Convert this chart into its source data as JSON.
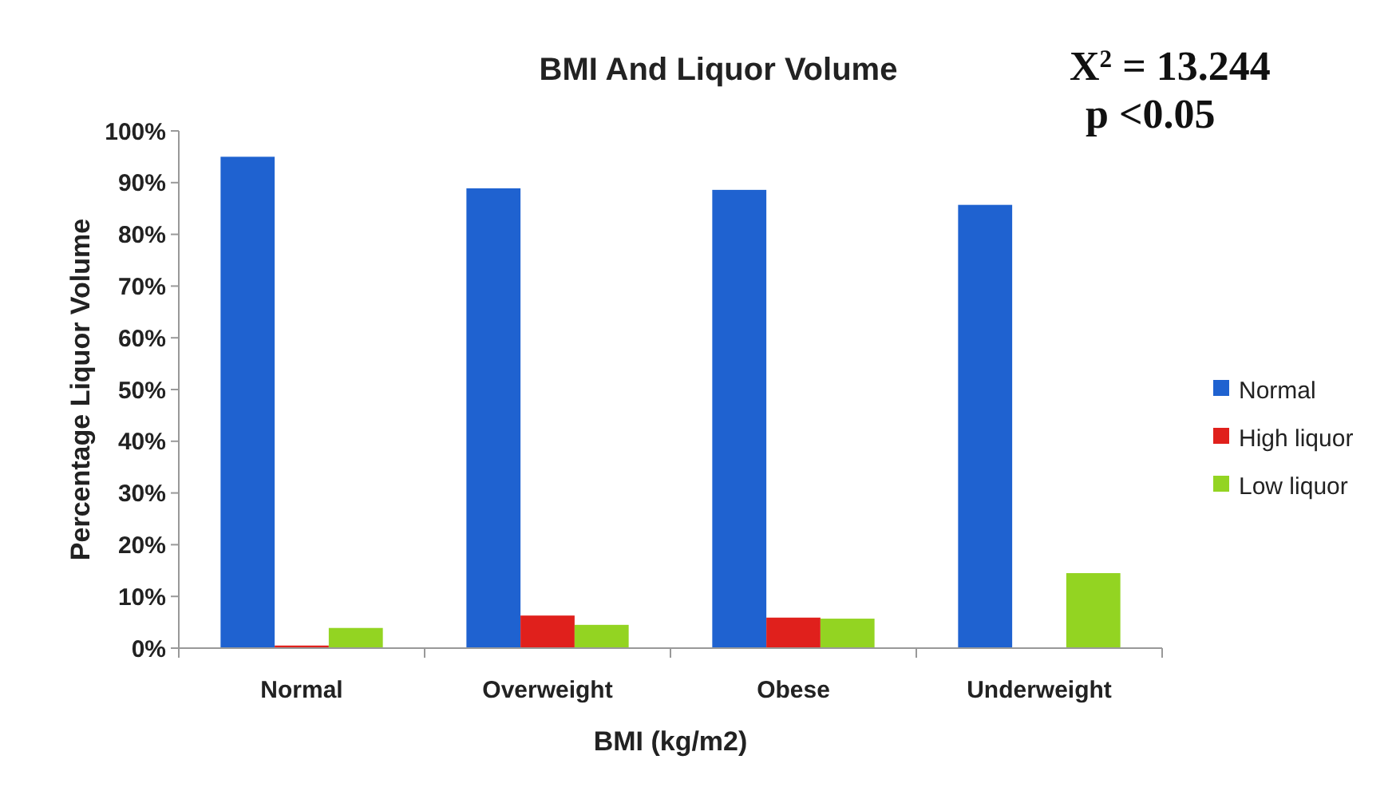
{
  "chart_data": {
    "type": "bar",
    "title": "BMI And Liquor Volume",
    "xlabel": "BMI (kg/m2)",
    "ylabel": "Percentage Liquor Volume",
    "categories": [
      "Normal",
      "Overweight",
      "Obese",
      "Underweight"
    ],
    "series": [
      {
        "name": "Normal",
        "color": "#1f62d0",
        "values": [
          95.0,
          88.9,
          88.6,
          85.7
        ]
      },
      {
        "name": "High liquor",
        "color": "#e0201c",
        "values": [
          0.5,
          6.3,
          5.9,
          0
        ]
      },
      {
        "name": "Low liquor",
        "color": "#93d422",
        "values": [
          3.9,
          4.5,
          5.7,
          14.5
        ]
      }
    ],
    "ylim": [
      0,
      100
    ],
    "yticks": [
      {
        "value": 0,
        "label": "0%"
      },
      {
        "value": 10,
        "label": "10%"
      },
      {
        "value": 20,
        "label": "20%"
      },
      {
        "value": 30,
        "label": "30%"
      },
      {
        "value": 40,
        "label": "40%"
      },
      {
        "value": 50,
        "label": "50%"
      },
      {
        "value": 60,
        "label": "60%"
      },
      {
        "value": 70,
        "label": "70%"
      },
      {
        "value": 80,
        "label": "80%"
      },
      {
        "value": 90,
        "label": "90%"
      },
      {
        "value": 100,
        "label": "100%"
      }
    ],
    "grid": false,
    "legend": "right",
    "annotations": [
      "X$^{2}$ = 13.244",
      "p <0.05"
    ]
  }
}
